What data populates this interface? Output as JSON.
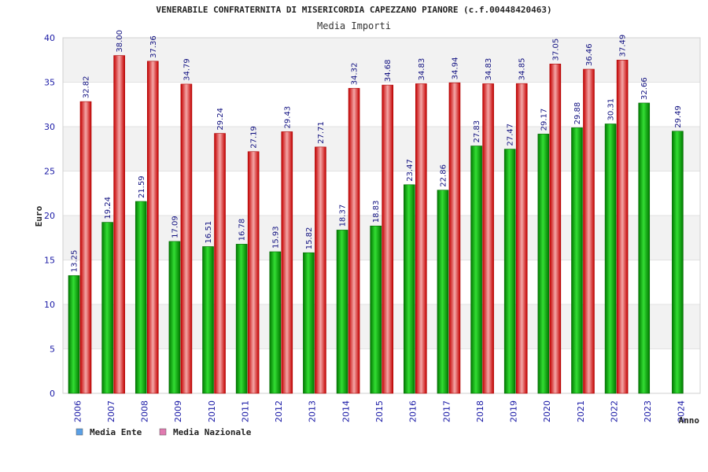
{
  "chart_data": {
    "type": "bar",
    "title": "VENERABILE CONFRATERNITA DI MISERICORDIA CAPEZZANO PIANORE (c.f.00448420463)",
    "subtitle": "Media Importi",
    "ylabel": "Euro",
    "xlabel": "Anno",
    "ylim": [
      0,
      40
    ],
    "yticks": [
      0,
      5,
      10,
      15,
      20,
      25,
      30,
      35,
      40
    ],
    "grid": "horizontal bands",
    "legend_position": "bottom-left",
    "categories": [
      "2006",
      "2007",
      "2008",
      "2009",
      "2010",
      "2011",
      "2012",
      "2013",
      "2014",
      "2015",
      "2016",
      "2017",
      "2018",
      "2019",
      "2020",
      "2021",
      "2022",
      "2023",
      "2024"
    ],
    "series": [
      {
        "name": "Media Ente",
        "color": "#00b400",
        "legend_color": "#5aa0e6",
        "values": [
          13.25,
          19.24,
          21.59,
          17.09,
          16.51,
          16.78,
          15.93,
          15.82,
          18.37,
          18.83,
          23.47,
          22.86,
          27.83,
          27.47,
          29.17,
          29.88,
          30.31,
          32.66,
          29.49
        ],
        "labels": [
          "13.25",
          "19.24",
          "21.59",
          "17.09",
          "16.51",
          "16.78",
          "15.93",
          "15.82",
          "18.37",
          "18.83",
          "23.47",
          "22.86",
          "27.83",
          "27.47",
          "29.17",
          "29.88",
          "30.31",
          "32.66",
          "29.49"
        ]
      },
      {
        "name": "Media Nazionale",
        "color": "#e61e1e",
        "legend_color": "#e07ab0",
        "values": [
          32.82,
          38.0,
          37.36,
          34.79,
          29.24,
          27.19,
          29.43,
          27.71,
          34.32,
          34.68,
          34.83,
          34.94,
          34.83,
          34.85,
          37.05,
          36.46,
          37.49,
          null,
          null
        ],
        "labels": [
          "32.82",
          "38.00",
          "37.36",
          "34.79",
          "29.24",
          "27.19",
          "29.43",
          "27.71",
          "34.32",
          "34.68",
          "34.83",
          "34.94",
          "34.83",
          "34.85",
          "37.05",
          "36.46",
          "37.49",
          "",
          ""
        ]
      }
    ]
  }
}
